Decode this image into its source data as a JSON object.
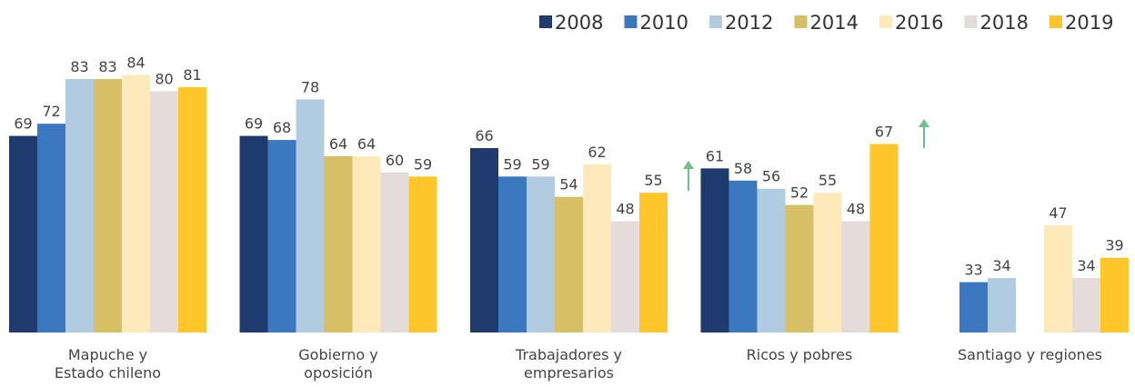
{
  "chart_data": {
    "type": "bar",
    "categories": [
      [
        "Mapuche y",
        "Estado chileno"
      ],
      [
        "Gobierno y",
        "oposición"
      ],
      [
        "Trabajadores y",
        "empresarios"
      ],
      [
        "Ricos y pobres"
      ],
      [
        "Santiago y regiones"
      ]
    ],
    "series": [
      {
        "name": "2008",
        "color": "#1f3a6d",
        "values": [
          69,
          69,
          66,
          61,
          null
        ]
      },
      {
        "name": "2010",
        "color": "#3b78bf",
        "values": [
          72,
          68,
          59,
          58,
          33
        ]
      },
      {
        "name": "2012",
        "color": "#b1cbe0",
        "values": [
          83,
          78,
          59,
          56,
          34
        ]
      },
      {
        "name": "2014",
        "color": "#d7bf66",
        "values": [
          83,
          64,
          54,
          52,
          null
        ]
      },
      {
        "name": "2016",
        "color": "#fde9b9",
        "values": [
          84,
          64,
          62,
          55,
          47
        ]
      },
      {
        "name": "2018",
        "color": "#e3dcda",
        "values": [
          80,
          60,
          48,
          48,
          34
        ]
      },
      {
        "name": "2019",
        "color": "#fec62a",
        "values": [
          81,
          59,
          55,
          67,
          39
        ]
      }
    ],
    "ylim": [
      20.6,
      100
    ],
    "legend": "top-right"
  }
}
